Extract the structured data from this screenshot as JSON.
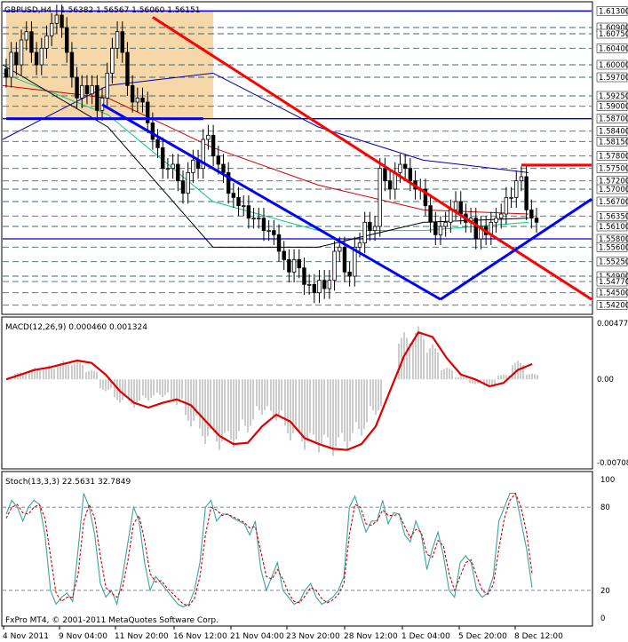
{
  "chart_data": [
    {
      "type": "candlestick",
      "title": "GBPUSD,H4",
      "ohlc_header": "1.56382 1.56567 1.56060 1.56151",
      "ylim": [
        1.54,
        1.615
      ],
      "price_levels": [
        "1.61300",
        "1.60900",
        "1.60750",
        "1.60400",
        "1.60000",
        "1.59700",
        "1.59250",
        "1.59000",
        "1.58700",
        "1.58400",
        "1.58150",
        "1.57800",
        "1.57500",
        "1.57200",
        "1.57000",
        "1.56700",
        "1.56350",
        "1.56100",
        "1.55800",
        "1.55600",
        "1.55250",
        "1.54900",
        "1.54770",
        "1.54500",
        "1.54200"
      ],
      "blue_levels": [
        "1.61300",
        "1.58700",
        "1.55800"
      ],
      "close_series": [
        1.597,
        1.603,
        1.6,
        1.606,
        1.608,
        1.603,
        1.6,
        1.604,
        1.607,
        1.61,
        1.612,
        1.609,
        1.603,
        1.597,
        1.592,
        1.595,
        1.593,
        1.595,
        1.589,
        1.592,
        1.598,
        1.604,
        1.608,
        1.603,
        1.595,
        1.591,
        1.592,
        1.591,
        1.586,
        1.582,
        1.58,
        1.575,
        1.575,
        1.576,
        1.572,
        1.569,
        1.574,
        1.577,
        1.575,
        1.582,
        1.583,
        1.578,
        1.576,
        1.574,
        1.569,
        1.568,
        1.566,
        1.566,
        1.563,
        1.563,
        1.563,
        1.56,
        1.56,
        1.559,
        1.555,
        1.553,
        1.55,
        1.553,
        1.551,
        1.547,
        1.547,
        1.545,
        1.548,
        1.546,
        1.548,
        1.555,
        1.556,
        1.55,
        1.549,
        1.556,
        1.557,
        1.562,
        1.56,
        1.561,
        1.575,
        1.572,
        1.57,
        1.574,
        1.576,
        1.575,
        1.572,
        1.57,
        1.57,
        1.566,
        1.562,
        1.559,
        1.561,
        1.562,
        1.565,
        1.567,
        1.564,
        1.562,
        1.563,
        1.558,
        1.561,
        1.559,
        1.562,
        1.563,
        1.564,
        1.568,
        1.568,
        1.572,
        1.573,
        1.565,
        1.563,
        1.562
      ],
      "trendlines": [
        {
          "color": "#ff0000",
          "from": [
            1.6115,
            29
          ],
          "to": [
            1.5434,
            120
          ]
        },
        {
          "color": "#0000ff",
          "from": [
            1.5904,
            19
          ],
          "to": [
            1.5434,
            86
          ]
        },
        {
          "color": "#0000ff",
          "from": [
            1.5434,
            86
          ],
          "to": [
            1.5676,
            157
          ]
        },
        {
          "color": "#ff0000",
          "from": [
            1.5758,
            102
          ],
          "to": [
            1.5758,
            145
          ]
        },
        {
          "color": "#0000ff",
          "from": [
            1.587,
            0
          ],
          "to": [
            1.587,
            39
          ]
        }
      ],
      "moving_averages": [
        {
          "color": "#0000aa",
          "values": [
            1.582,
            1.595,
            1.598,
            1.585,
            1.577,
            1.574
          ]
        },
        {
          "color": "#cc0000",
          "values": [
            1.595,
            1.592,
            1.58,
            1.571,
            1.565,
            1.564
          ]
        },
        {
          "color": "#00cc88",
          "values": [
            1.598,
            1.588,
            1.567,
            1.56,
            1.56,
            1.562
          ]
        },
        {
          "color": "#000000",
          "values": [
            1.6,
            1.585,
            1.556,
            1.556,
            1.562,
            1.563
          ]
        }
      ],
      "shaded_box": {
        "color": "#f5d7a8",
        "y_range": [
          1.587,
          1.613
        ],
        "x_range": [
          0,
          41
        ]
      }
    },
    {
      "type": "histogram+line",
      "title": "MACD(12,26,9) 0.000460 0.001324",
      "ylim": [
        -0.00708,
        0.00477
      ],
      "tick_labels": [
        "0.00477",
        "0.00",
        "-0.00708"
      ],
      "signal_series": [
        0.0,
        0.0004,
        0.0008,
        0.001,
        0.0013,
        0.0016,
        0.0014,
        0.0004,
        -0.001,
        -0.002,
        -0.0024,
        -0.002,
        -0.0017,
        -0.0022,
        -0.0035,
        -0.0048,
        -0.0055,
        -0.0054,
        -0.004,
        -0.003,
        -0.0036,
        -0.005,
        -0.0055,
        -0.0059,
        -0.006,
        -0.0055,
        -0.004,
        -0.001,
        0.002,
        0.004,
        0.0036,
        0.0018,
        0.0004,
        0.0,
        -0.0006,
        -0.0003,
        0.0008,
        0.0013
      ],
      "hist_series": [
        0.0,
        0.0006,
        0.001,
        0.0012,
        0.0016,
        0.0016,
        0.0008,
        -0.001,
        -0.002,
        -0.0024,
        -0.0018,
        -0.0015,
        -0.0022,
        -0.004,
        -0.0055,
        -0.006,
        -0.0058,
        -0.0045,
        -0.003,
        -0.0035,
        -0.0052,
        -0.006,
        -0.0062,
        -0.0065,
        -0.006,
        -0.0048,
        -0.003,
        0.0,
        0.004,
        0.0045,
        0.003,
        0.001,
        0.0002,
        -0.0004,
        -0.0006,
        0.0004,
        0.0016,
        0.0005
      ],
      "colors": {
        "signal": "#dd0000",
        "hist": "#999999"
      }
    },
    {
      "type": "line",
      "title": "Stoch(13,3,3) 22.5631 32.7849",
      "ylim": [
        0,
        100
      ],
      "tick_labels": [
        "100",
        "80",
        "20",
        "0"
      ],
      "main_series": [
        75,
        85,
        80,
        70,
        80,
        85,
        82,
        60,
        20,
        10,
        15,
        18,
        12,
        50,
        90,
        80,
        60,
        25,
        15,
        20,
        10,
        30,
        55,
        80,
        70,
        40,
        20,
        30,
        25,
        20,
        15,
        10,
        8,
        10,
        20,
        40,
        80,
        85,
        70,
        75,
        75,
        72,
        70,
        68,
        60,
        70,
        35,
        20,
        30,
        40,
        20,
        15,
        10,
        12,
        20,
        25,
        15,
        10,
        12,
        15,
        20,
        30,
        80,
        88,
        75,
        62,
        70,
        70,
        85,
        68,
        76,
        75,
        60,
        55,
        70,
        60,
        35,
        50,
        62,
        45,
        20,
        15,
        40,
        45,
        40,
        20,
        15,
        18,
        30,
        70,
        80,
        90,
        90,
        70,
        50,
        22
      ],
      "signal_series": [
        72,
        80,
        82,
        76,
        75,
        80,
        82,
        72,
        45,
        18,
        12,
        15,
        15,
        32,
        70,
        82,
        72,
        45,
        22,
        18,
        15,
        22,
        42,
        68,
        74,
        56,
        32,
        26,
        27,
        22,
        18,
        14,
        10,
        9,
        14,
        30,
        60,
        80,
        78,
        74,
        75,
        73,
        71,
        69,
        65,
        66,
        48,
        30,
        28,
        35,
        28,
        18,
        12,
        11,
        16,
        22,
        20,
        14,
        11,
        13,
        17,
        25,
        60,
        82,
        80,
        68,
        67,
        70,
        78,
        74,
        74,
        75,
        66,
        58,
        64,
        62,
        46,
        44,
        56,
        52,
        32,
        20,
        30,
        40,
        42,
        30,
        20,
        17,
        24,
        50,
        72,
        85,
        90,
        80,
        62,
        32
      ],
      "colors": {
        "main": "#3aa3a3",
        "signal": "#cc0000"
      }
    }
  ],
  "time_axis": [
    "4 Nov 2011",
    "9 Nov 04:00",
    "11 Nov 20:00",
    "16 Nov 12:00",
    "21 Nov 04:00",
    "23 Nov 20:00",
    "28 Nov 12:00",
    "1 Dec 04:00",
    "5 Dec 20:00",
    "8 Dec 12:00"
  ],
  "footer": "FxPro MT4, © 2001-2011 MetaQuotes Software Corp."
}
